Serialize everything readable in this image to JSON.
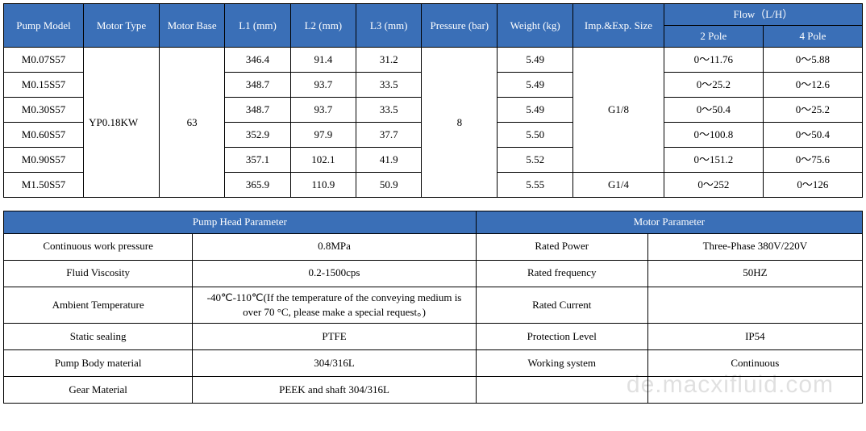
{
  "colors": {
    "header_bg": "#3a6fb7",
    "header_fg": "#ffffff",
    "border": "#000000",
    "page_bg": "#ffffff",
    "text": "#000000"
  },
  "spec": {
    "headers": {
      "pump_model": "Pump Model",
      "motor_type": "Motor Type",
      "motor_base": "Motor Base",
      "l1": "L1 (mm)",
      "l2": "L2 (mm)",
      "l3": "L3 (mm)",
      "pressure": "Pressure (bar)",
      "weight": "Weight (kg)",
      "imp_exp": "Imp.&Exp. Size",
      "flow": "Flow（L/H）",
      "pole2": "2 Pole",
      "pole4": "4 Pole"
    },
    "shared": {
      "motor_type": "YP0.18KW",
      "motor_base": "63",
      "pressure": "8",
      "imp_exp_top": "G1/8",
      "imp_exp_bottom": "G1/4"
    },
    "rows": [
      {
        "model": "M0.07S57",
        "l1": "346.4",
        "l2": "91.4",
        "l3": "31.2",
        "weight": "5.49",
        "p2": "0～11.76",
        "p4": "0～5.88"
      },
      {
        "model": "M0.15S57",
        "l1": "348.7",
        "l2": "93.7",
        "l3": "33.5",
        "weight": "5.49",
        "p2": "0～25.2",
        "p4": "0～12.6"
      },
      {
        "model": "M0.30S57",
        "l1": "348.7",
        "l2": "93.7",
        "l3": "33.5",
        "weight": "5.49",
        "p2": "0～50.4",
        "p4": "0～25.2"
      },
      {
        "model": "M0.60S57",
        "l1": "352.9",
        "l2": "97.9",
        "l3": "37.7",
        "weight": "5.50",
        "p2": "0～100.8",
        "p4": "0～50.4"
      },
      {
        "model": "M0.90S57",
        "l1": "357.1",
        "l2": "102.1",
        "l3": "41.9",
        "weight": "5.52",
        "p2": "0～151.2",
        "p4": "0～75.6"
      },
      {
        "model": "M1.50S57",
        "l1": "365.9",
        "l2": "110.9",
        "l3": "50.9",
        "weight": "5.55",
        "p2": "0～252",
        "p4": "0～126"
      }
    ]
  },
  "params": {
    "headers": {
      "pump_head": "Pump Head Parameter",
      "motor_param": "Motor Parameter"
    },
    "rows": [
      {
        "k1": "Continuous work pressure",
        "v1": "0.8MPa",
        "k2": "Rated Power",
        "v2": "Three-Phase 380V/220V"
      },
      {
        "k1": "Fluid Viscosity",
        "v1": "0.2-1500cps",
        "k2": "Rated frequency",
        "v2": "50HZ"
      },
      {
        "k1": "Ambient Temperature",
        "v1": "-40℃-110℃(If the temperature of the conveying medium is over 70 °C, please make a special request。)",
        "k2": "Rated Current",
        "v2": ""
      },
      {
        "k1": "Static sealing",
        "v1": "PTFE",
        "k2": "Protection Level",
        "v2": "IP54"
      },
      {
        "k1": "Pump Body material",
        "v1": "304/316L",
        "k2": "Working system",
        "v2": "Continuous"
      },
      {
        "k1": "Gear Material",
        "v1": "PEEK and shaft 304/316L",
        "k2": "",
        "v2": ""
      }
    ]
  },
  "watermark": "de.macxifluid.com"
}
